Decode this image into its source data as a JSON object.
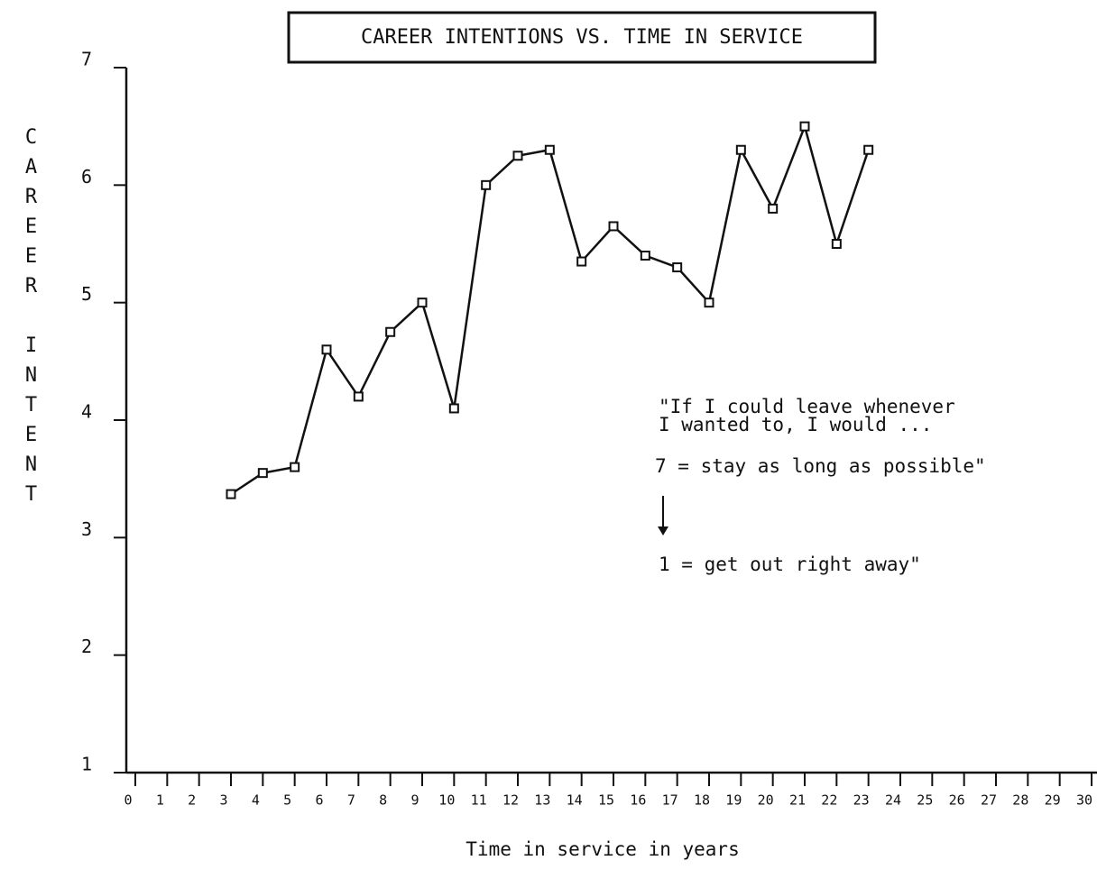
{
  "chart_data": {
    "type": "line",
    "title": "CAREER INTENTIONS VS. TIME IN SERVICE",
    "y_label": "CAREER INTENT",
    "x_label": "Time in service in years",
    "annotations": [
      "\"If I could leave whenever",
      "I wanted to, I would ...",
      "7 = stay as long as possible\"",
      "1 = get out right away\""
    ],
    "x": [
      3,
      4,
      5,
      6,
      7,
      8,
      9,
      10,
      11,
      12,
      13,
      14,
      15,
      16,
      17,
      18,
      19,
      20,
      21,
      22,
      23
    ],
    "values": [
      3.37,
      3.55,
      3.6,
      4.6,
      4.2,
      4.75,
      5.0,
      4.1,
      6.0,
      6.25,
      6.3,
      5.35,
      5.65,
      5.4,
      5.3,
      5.0,
      6.3,
      5.8,
      6.5,
      5.5,
      6.3
    ],
    "color": "#111111",
    "xlim": [
      0,
      30
    ],
    "xticks": [
      0,
      1,
      2,
      3,
      4,
      5,
      6,
      7,
      8,
      9,
      10,
      11,
      12,
      13,
      14,
      15,
      16,
      17,
      18,
      19,
      20,
      21,
      22,
      23,
      24,
      25,
      26,
      27,
      28,
      29,
      30
    ],
    "ylim": [
      1,
      7
    ],
    "yticks": [
      1,
      2,
      3,
      4,
      5,
      6,
      7
    ]
  }
}
